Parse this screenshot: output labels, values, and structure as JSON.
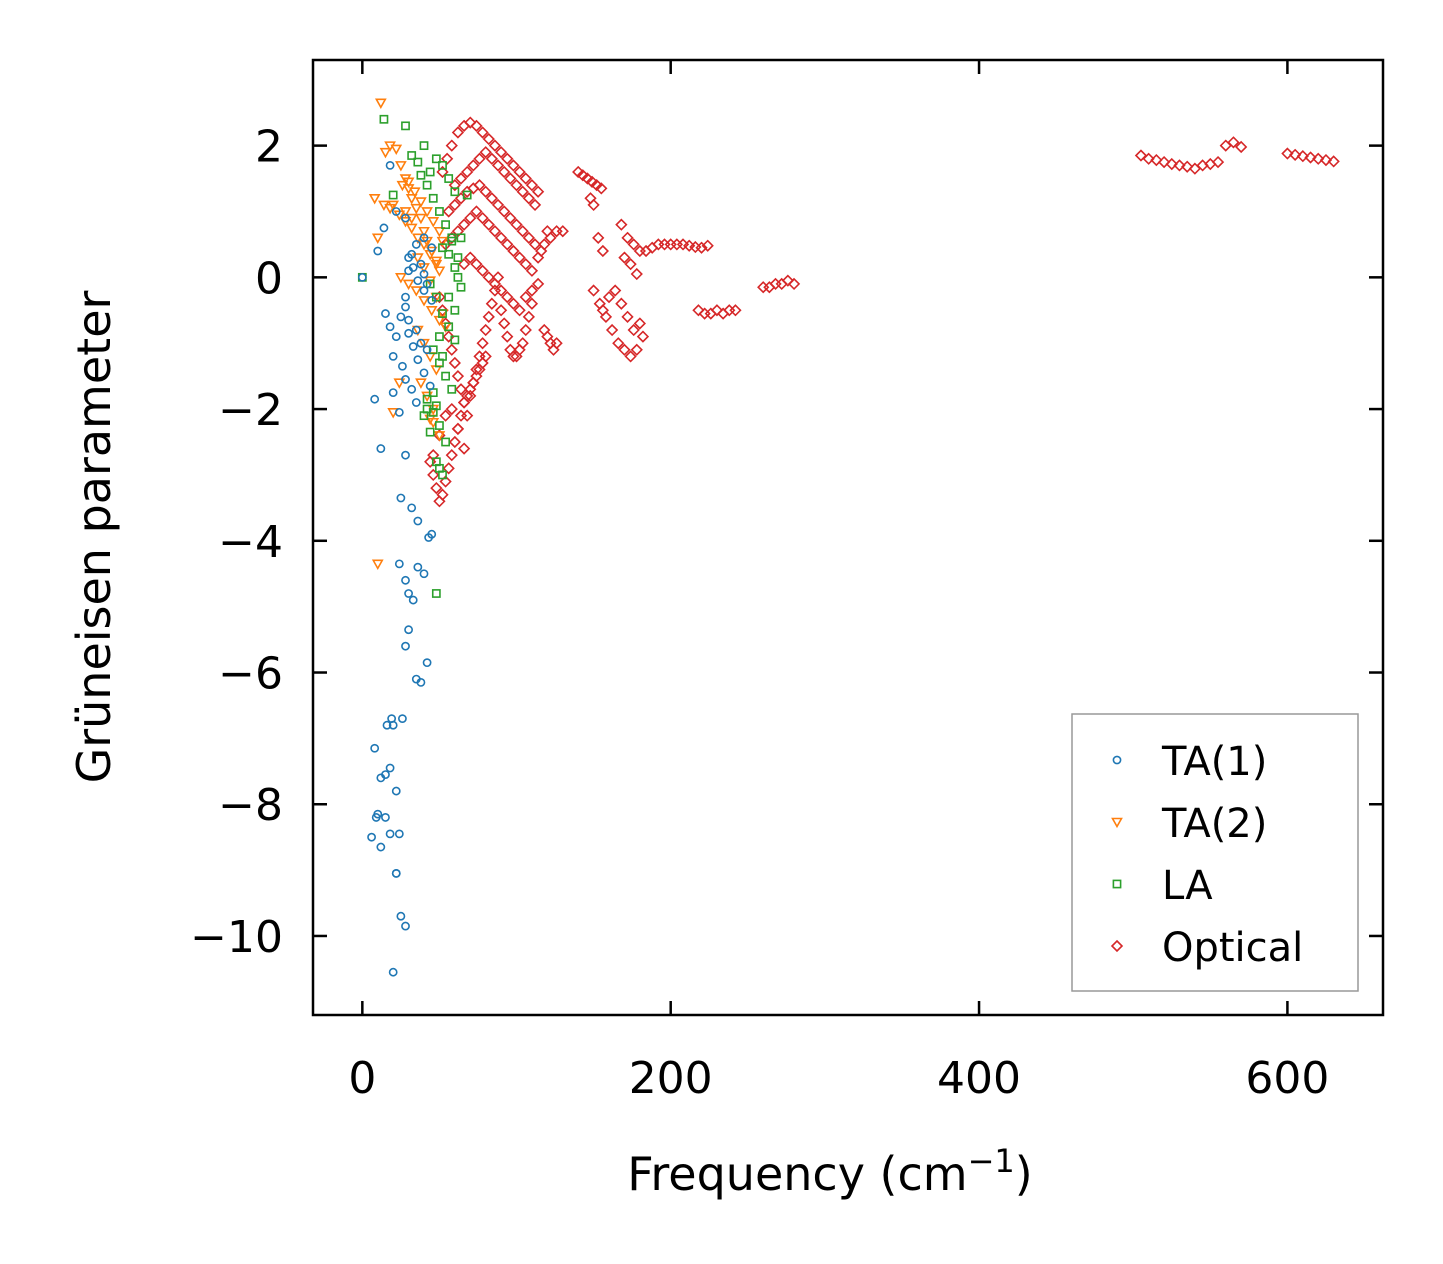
{
  "chart_data": {
    "type": "scatter",
    "title": "",
    "xlabel": "Frequency (cm",
    "xlabel_sup": "−1",
    "xlabel_end": ")",
    "ylabel": "Grüneisen parameter",
    "xlim": [
      -32,
      662
    ],
    "ylim": [
      -11.2,
      3.3
    ],
    "xticks": [
      0,
      200,
      400,
      600
    ],
    "xtick_labels": [
      "0",
      "200",
      "400",
      "600"
    ],
    "yticks": [
      -10,
      -8,
      -6,
      -4,
      -2,
      0,
      2
    ],
    "ytick_labels": [
      "−10",
      "−8",
      "−6",
      "−4",
      "−2",
      "0",
      "2"
    ],
    "grid": false,
    "legend_position": "bottom-right",
    "series": [
      {
        "name": "TA(1)",
        "marker": "circle",
        "color": "#1f77b4",
        "x": [
          0,
          8,
          12,
          15,
          18,
          20,
          22,
          25,
          28,
          30,
          32,
          35,
          38,
          40,
          42,
          45,
          30,
          33,
          36,
          40,
          44,
          20,
          24,
          28,
          32,
          36,
          25,
          28,
          30,
          33,
          36,
          40,
          43,
          45,
          42,
          38,
          28,
          30,
          35,
          40,
          45,
          30,
          33,
          36,
          40,
          28,
          30,
          35,
          38,
          42,
          26,
          28,
          32,
          35,
          10,
          14,
          18,
          22,
          28,
          20,
          15,
          18,
          22,
          26,
          8,
          10,
          12,
          15,
          18,
          22,
          25,
          28,
          20,
          24,
          22,
          6,
          9,
          12,
          16,
          19,
          24
        ],
        "y": [
          0,
          -1.85,
          -2.6,
          -0.55,
          -0.75,
          -1.2,
          -0.9,
          -0.6,
          -0.3,
          0.1,
          0.35,
          0.5,
          0.2,
          0.05,
          -0.1,
          -0.35,
          -0.85,
          -1.05,
          -1.25,
          -1.45,
          -1.65,
          -1.75,
          -2.05,
          -2.7,
          -3.5,
          -3.7,
          -3.35,
          -4.6,
          -4.8,
          -4.9,
          -4.4,
          -4.5,
          -3.95,
          -3.9,
          -5.85,
          -6.15,
          -5.6,
          -5.35,
          -6.1,
          0.6,
          0.45,
          0.3,
          0.15,
          -0.05,
          -0.2,
          -0.45,
          -0.65,
          -0.8,
          -1.0,
          -1.1,
          -1.35,
          -1.55,
          -1.7,
          -1.9,
          0.4,
          0.75,
          1.7,
          1.0,
          0.9,
          -6.8,
          -7.55,
          -7.45,
          -7.8,
          -6.7,
          -7.15,
          -8.15,
          -8.65,
          -8.2,
          -8.45,
          -9.05,
          -9.7,
          -9.85,
          -10.55,
          -8.45,
          -9.05,
          -8.5,
          -8.2,
          -7.6,
          -6.8,
          -6.7,
          -4.35
        ],
        "extra_note": ""
      },
      {
        "name": "TA(2)",
        "marker": "triangle_down",
        "color": "#ff7f0e",
        "x": [
          12,
          18,
          22,
          25,
          28,
          30,
          32,
          35,
          38,
          40,
          42,
          45,
          48,
          50,
          20,
          24,
          28,
          32,
          36,
          40,
          44,
          48,
          8,
          10,
          14,
          18,
          26,
          30,
          34,
          38,
          42,
          46,
          50,
          52,
          25,
          30,
          35,
          40,
          45,
          50,
          36,
          40,
          44,
          48,
          38,
          42,
          46,
          10,
          15,
          20,
          24,
          28,
          32,
          36,
          40,
          44,
          48,
          52,
          54,
          46,
          50,
          44
        ],
        "y": [
          2.65,
          2.0,
          1.95,
          1.7,
          1.5,
          1.35,
          1.2,
          1.05,
          0.9,
          0.7,
          0.55,
          0.4,
          0.25,
          0.1,
          1.1,
          0.95,
          0.85,
          0.75,
          0.6,
          0.5,
          0.35,
          0.2,
          1.2,
          0.6,
          1.1,
          1.05,
          1.4,
          1.45,
          1.3,
          1.15,
          1.0,
          0.85,
          0.7,
          0.55,
          0.0,
          -0.1,
          -0.2,
          -0.35,
          -0.5,
          -0.65,
          -0.8,
          -1.0,
          -1.2,
          -1.4,
          -1.6,
          -1.8,
          -2.0,
          -4.35,
          1.9,
          -2.05,
          -1.6,
          1.0,
          0.9,
          0.3,
          0.15,
          -0.05,
          -0.3,
          -0.55,
          -0.75,
          -2.2,
          -2.4,
          -2.15
        ],
        "extra_note": ""
      },
      {
        "name": "LA",
        "marker": "square",
        "color": "#2ca02c",
        "x": [
          0,
          14,
          20,
          28,
          32,
          36,
          40,
          44,
          48,
          52,
          56,
          60,
          64,
          68,
          38,
          42,
          46,
          50,
          54,
          58,
          62,
          44,
          48,
          52,
          56,
          60,
          46,
          50,
          54,
          58,
          42,
          46,
          50,
          54,
          40,
          44,
          48,
          52,
          48,
          50,
          52,
          42,
          48,
          52,
          56,
          60,
          64,
          58,
          62,
          56,
          60,
          46,
          50
        ],
        "y": [
          0,
          2.4,
          1.25,
          2.3,
          1.85,
          1.75,
          2.0,
          1.6,
          1.8,
          1.7,
          1.5,
          1.3,
          0.6,
          1.25,
          1.55,
          1.4,
          1.2,
          1.0,
          0.8,
          0.55,
          0.3,
          -0.1,
          -0.3,
          -0.55,
          -0.75,
          -0.95,
          -1.1,
          -1.3,
          -1.5,
          -1.7,
          -1.85,
          -2.05,
          -2.25,
          -2.5,
          -2.1,
          -2.35,
          -2.8,
          -3.0,
          -4.8,
          -0.9,
          -1.2,
          -2.0,
          -1.95,
          0.45,
          0.35,
          0.15,
          -0.15,
          0.6,
          0.0,
          -0.3,
          -0.5,
          -1.75,
          -2.9
        ],
        "extra_note": ""
      },
      {
        "name": "Optical",
        "marker": "diamond",
        "color": "#d62728",
        "x": [],
        "y": [],
        "clusters_note": "dense clusters; points listed in clusters",
        "clusters": [
          {
            "x": [
              52,
              55,
              58,
              62,
              66,
              70,
              74,
              78,
              82,
              86,
              90,
              94,
              98,
              102,
              106,
              110,
              114,
              60,
              64,
              68,
              72,
              76,
              80,
              84,
              88,
              92,
              96,
              100,
              104,
              108,
              112,
              56,
              60,
              64,
              68,
              72,
              76,
              80,
              84,
              88,
              92,
              96,
              100,
              104,
              108,
              112,
              116,
              120,
              54,
              58,
              62,
              66,
              70,
              74,
              78,
              82,
              86,
              90,
              94,
              98,
              102,
              106,
              110,
              114,
              118,
              122,
              126,
              130,
              66,
              70,
              74,
              78,
              82,
              86,
              90,
              94,
              98,
              102,
              106,
              110,
              114
            ],
            "y": [
              1.6,
              1.8,
              2.0,
              2.2,
              2.3,
              2.35,
              2.3,
              2.2,
              2.1,
              2.0,
              1.9,
              1.8,
              1.7,
              1.6,
              1.5,
              1.4,
              1.3,
              1.4,
              1.5,
              1.6,
              1.7,
              1.8,
              1.9,
              1.8,
              1.7,
              1.6,
              1.5,
              1.4,
              1.3,
              1.2,
              1.1,
              1.0,
              1.1,
              1.2,
              1.3,
              1.35,
              1.4,
              1.3,
              1.2,
              1.1,
              1.0,
              0.9,
              0.8,
              0.7,
              0.6,
              0.5,
              0.4,
              0.7,
              0.5,
              0.6,
              0.7,
              0.8,
              0.9,
              1.0,
              0.9,
              0.8,
              0.7,
              0.6,
              0.5,
              0.4,
              0.3,
              0.2,
              0.1,
              0.3,
              0.5,
              0.6,
              0.7,
              0.7,
              0.2,
              0.3,
              0.2,
              0.1,
              0.0,
              -0.1,
              -0.2,
              -0.3,
              -0.4,
              -0.5,
              -0.3,
              -0.2,
              -0.1
            ]
          },
          {
            "x": [
              50,
              52,
              54,
              56,
              58,
              60,
              62,
              64,
              66,
              68,
              70,
              72,
              74,
              76,
              78,
              80,
              82,
              84,
              86,
              88,
              90,
              92,
              94,
              96,
              98,
              100,
              102,
              104,
              106,
              108,
              110
            ],
            "y": [
              -0.3,
              -0.5,
              -0.7,
              -0.9,
              -1.1,
              -1.3,
              -1.5,
              -1.7,
              -1.9,
              -2.1,
              -1.8,
              -1.6,
              -1.4,
              -1.2,
              -1.0,
              -0.8,
              -0.6,
              -0.4,
              -0.2,
              0.0,
              -0.5,
              -0.7,
              -0.9,
              -1.1,
              -1.2,
              -1.2,
              -1.1,
              -1.0,
              -0.8,
              -0.6,
              -0.4
            ]
          },
          {
            "x": [
              44,
              46,
              48,
              50,
              52,
              54,
              56,
              58,
              60,
              62,
              64,
              66,
              68,
              70,
              72,
              74,
              76,
              78,
              80,
              46,
              50,
              54,
              58,
              62,
              66
            ],
            "y": [
              -2.8,
              -3.0,
              -3.2,
              -3.4,
              -3.3,
              -3.1,
              -2.9,
              -2.7,
              -2.5,
              -2.3,
              -2.1,
              -1.9,
              -1.8,
              -1.7,
              -1.6,
              -1.5,
              -1.4,
              -1.3,
              -1.2,
              -2.7,
              -2.4,
              -2.1,
              -2.0,
              -2.3,
              -2.6
            ]
          },
          {
            "x": [
              118,
              120,
              122,
              124,
              126
            ],
            "y": [
              -0.8,
              -0.9,
              -1.0,
              -1.1,
              -1.0
            ]
          },
          {
            "x": [
              140,
              143,
              146,
              149,
              152,
              155,
              148,
              150,
              153,
              156
            ],
            "y": [
              1.6,
              1.55,
              1.5,
              1.45,
              1.4,
              1.35,
              1.2,
              1.1,
              0.6,
              0.4
            ]
          },
          {
            "x": [
              150,
              154,
              158,
              162,
              166,
              170,
              174,
              178,
              182,
              156,
              160,
              164,
              168,
              172,
              176,
              180
            ],
            "y": [
              -0.2,
              -0.4,
              -0.6,
              -0.8,
              -1.0,
              -1.1,
              -1.2,
              -1.1,
              -0.9,
              -0.5,
              -0.3,
              -0.2,
              -0.4,
              -0.6,
              -0.8,
              -0.7
            ]
          },
          {
            "x": [
              168,
              172,
              176,
              180,
              184,
              188,
              192,
              196,
              200,
              204,
              208,
              212,
              216,
              220,
              224,
              170,
              174,
              178
            ],
            "y": [
              0.8,
              0.6,
              0.5,
              0.4,
              0.4,
              0.45,
              0.5,
              0.5,
              0.5,
              0.5,
              0.5,
              0.48,
              0.46,
              0.45,
              0.48,
              0.3,
              0.2,
              0.05
            ]
          },
          {
            "x": [
              218,
              222,
              226,
              230,
              234,
              238,
              242
            ],
            "y": [
              -0.5,
              -0.55,
              -0.55,
              -0.5,
              -0.55,
              -0.5,
              -0.5
            ]
          },
          {
            "x": [
              260,
              264,
              268,
              272,
              276,
              280
            ],
            "y": [
              -0.15,
              -0.15,
              -0.1,
              -0.1,
              -0.05,
              -0.1
            ]
          },
          {
            "x": [
              505,
              510,
              515,
              520,
              525,
              530,
              535,
              540,
              545,
              550,
              555,
              560,
              565,
              570
            ],
            "y": [
              1.85,
              1.8,
              1.78,
              1.75,
              1.72,
              1.7,
              1.68,
              1.65,
              1.7,
              1.72,
              1.75,
              2.0,
              2.05,
              1.98
            ]
          },
          {
            "x": [
              600,
              605,
              610,
              615,
              620,
              625,
              630
            ],
            "y": [
              1.88,
              1.86,
              1.84,
              1.82,
              1.8,
              1.78,
              1.76
            ]
          }
        ],
        "extra_note": ""
      }
    ]
  }
}
